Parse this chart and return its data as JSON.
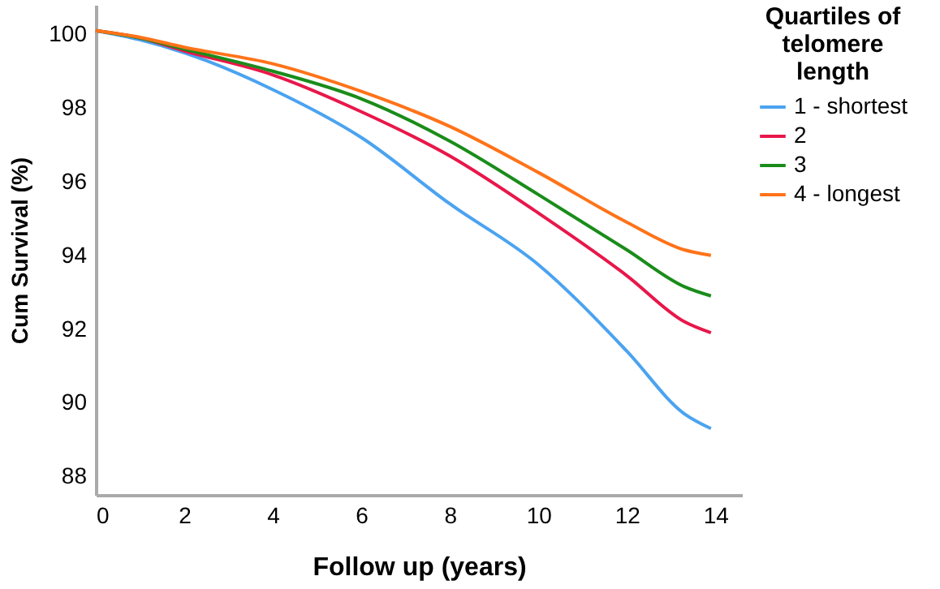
{
  "chart_data": {
    "type": "line",
    "xlabel": "Follow up (years)",
    "ylabel": "Cum Survival (%)",
    "legend_title": "Quartiles of telomere length",
    "x": [
      0,
      1,
      2,
      4,
      6,
      8,
      10,
      12,
      13.3,
      13.9
    ],
    "series": [
      {
        "name": "1 - shortest",
        "color": "#4ba3f0",
        "values": [
          100.1,
          99.85,
          99.5,
          98.5,
          97.2,
          95.4,
          93.75,
          91.4,
          89.7,
          89.3
        ]
      },
      {
        "name": "2",
        "color": "#e8174a",
        "values": [
          100.1,
          99.9,
          99.55,
          98.9,
          97.9,
          96.7,
          95.15,
          93.45,
          92.2,
          91.9
        ]
      },
      {
        "name": "3",
        "color": "#1a8c1a",
        "values": [
          100.1,
          99.9,
          99.6,
          99.0,
          98.25,
          97.1,
          95.65,
          94.15,
          93.15,
          92.9
        ]
      },
      {
        "name": "4 - longest",
        "color": "#ff7319",
        "values": [
          100.1,
          99.92,
          99.65,
          99.2,
          98.45,
          97.5,
          96.25,
          94.9,
          94.15,
          94.0
        ]
      }
    ],
    "xlim": [
      0,
      14.6
    ],
    "xticks": [
      0,
      2,
      4,
      6,
      8,
      10,
      12,
      14
    ],
    "ylim": [
      87.5,
      100.8
    ],
    "yticks": [
      88,
      90,
      92,
      94,
      96,
      98,
      100
    ],
    "grid": false,
    "legend": "top right",
    "marker": "none",
    "line_style": "solid"
  }
}
